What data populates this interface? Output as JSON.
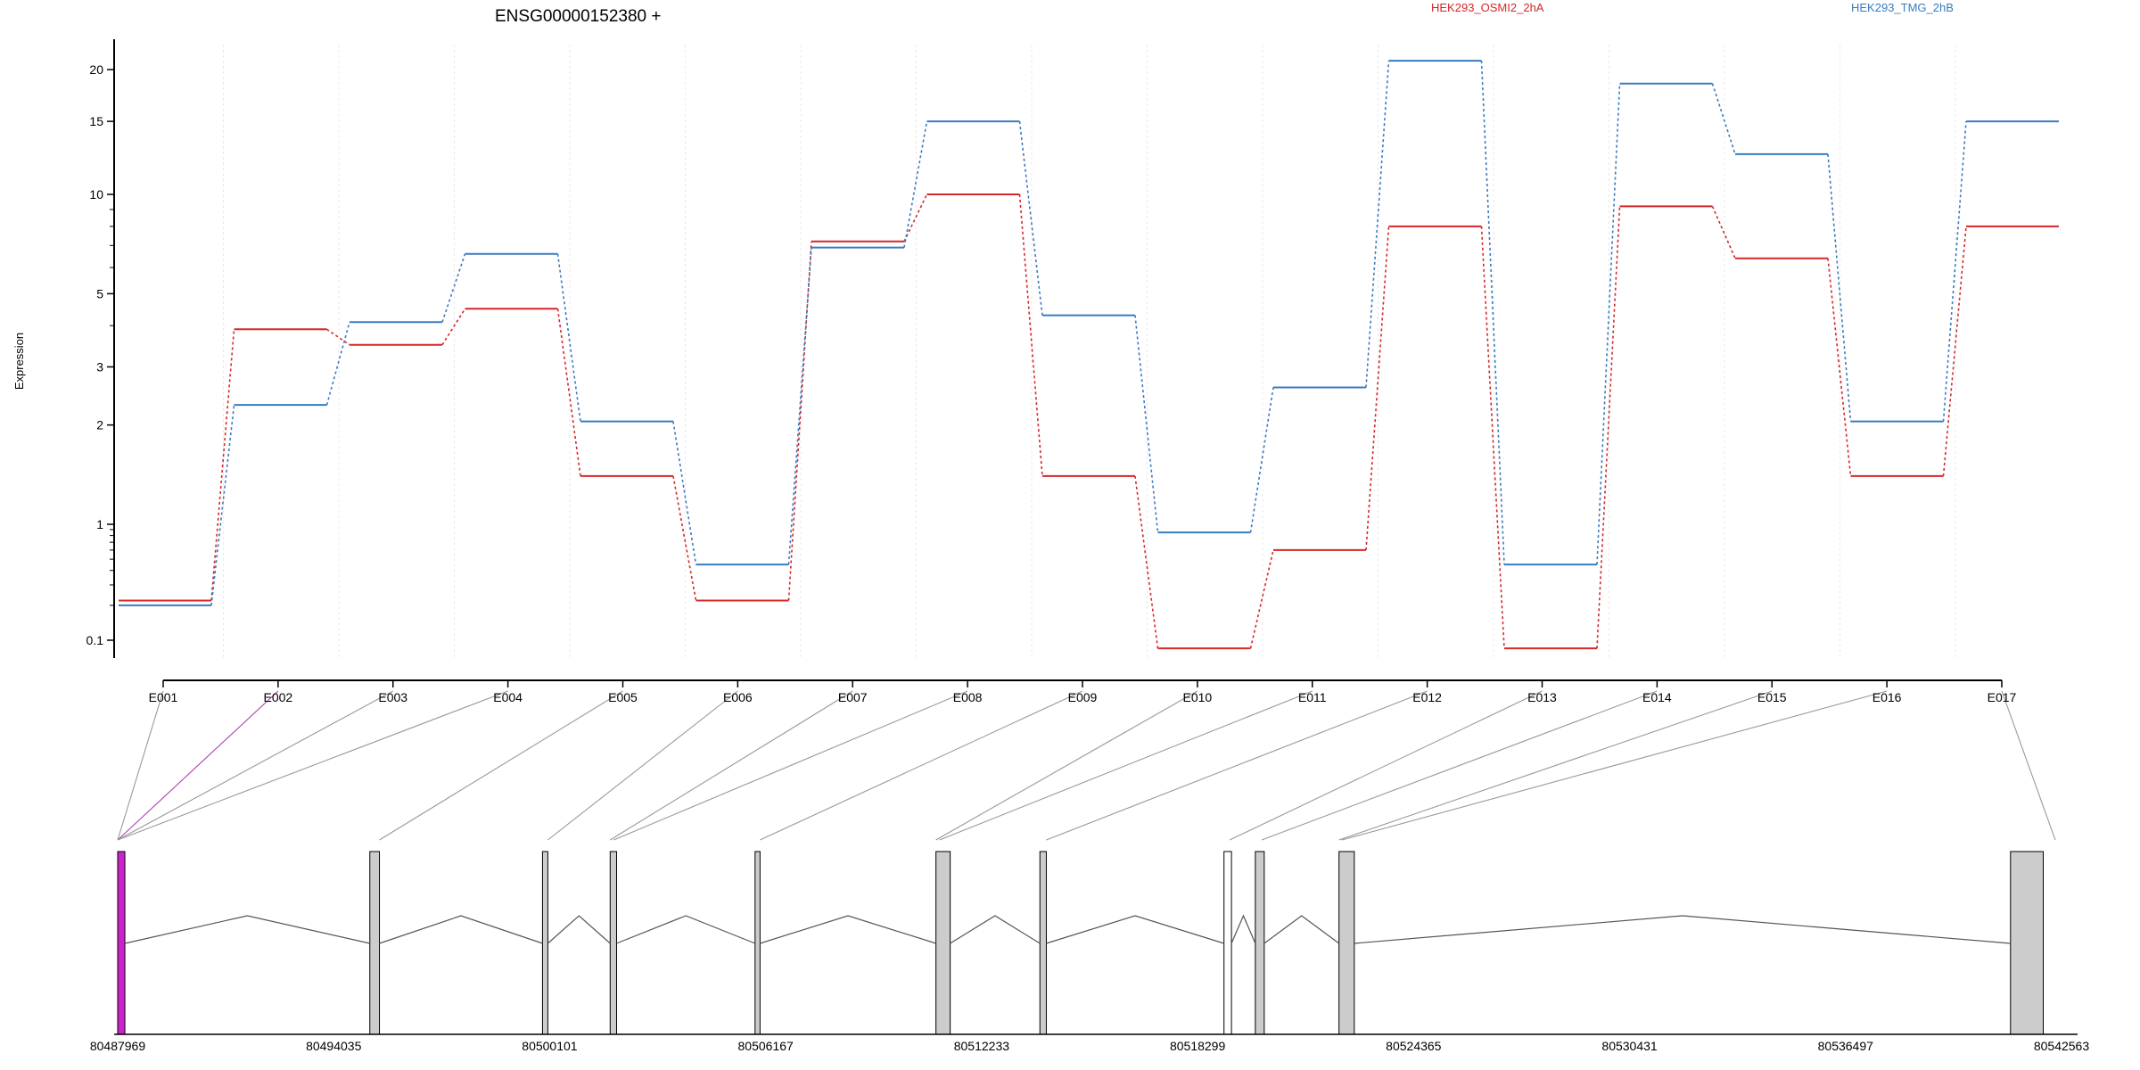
{
  "title": "ENSG00000152380 +",
  "chart_data": {
    "type": "line",
    "title": "ENSG00000152380 +",
    "ylabel": "Expression",
    "y_scale": "log",
    "ylim": [
      0.07,
      25
    ],
    "y_ticks": [
      0.1,
      1,
      2,
      3,
      5,
      10,
      15,
      20
    ],
    "y_tick_labels": [
      "0.1",
      "1",
      "2",
      "3",
      "5",
      "10",
      "15",
      "20"
    ],
    "categories": [
      "E001",
      "E002",
      "E003",
      "E004",
      "E005",
      "E006",
      "E007",
      "E008",
      "E009",
      "E010",
      "E011",
      "E012",
      "E013",
      "E014",
      "E015",
      "E016",
      "E017"
    ],
    "grid": true,
    "legend_placement": "top",
    "series": [
      {
        "name": "HEK293_OSMI2_2hA",
        "color": "#d62728",
        "values": [
          0.22,
          3.9,
          3.5,
          4.5,
          1.4,
          0.22,
          7.2,
          10.0,
          1.4,
          0.085,
          0.6,
          8.0,
          0.085,
          9.2,
          6.4,
          1.4,
          8.0
        ]
      },
      {
        "name": "HEK293_TMG_2hB",
        "color": "#3a7bbf",
        "values": [
          0.2,
          2.3,
          4.1,
          6.6,
          2.05,
          0.45,
          6.9,
          15.0,
          4.3,
          0.85,
          2.6,
          21.0,
          0.45,
          18.5,
          12.5,
          2.05,
          15.0
        ]
      }
    ]
  },
  "gene_model": {
    "fill_color": "#cccccc",
    "highlight_color": "#cc22cc",
    "coordinate_labels": [
      "80487969",
      "80494035",
      "80500101",
      "80506167",
      "80512233",
      "80518299",
      "80524365",
      "80530431",
      "80536497",
      "80542563"
    ],
    "region_start": 80487969,
    "region_end": 80542563,
    "exons": [
      {
        "start": 80487969,
        "end": 80488170,
        "fill": "#cc22cc"
      },
      {
        "start": 80495050,
        "end": 80495320,
        "fill": "#cccccc"
      },
      {
        "start": 80499900,
        "end": 80500050,
        "fill": "#cccccc"
      },
      {
        "start": 80501800,
        "end": 80501980,
        "fill": "#cccccc"
      },
      {
        "start": 80505870,
        "end": 80506010,
        "fill": "#cccccc"
      },
      {
        "start": 80510950,
        "end": 80511350,
        "fill": "#cccccc"
      },
      {
        "start": 80513870,
        "end": 80514050,
        "fill": "#cccccc"
      },
      {
        "start": 80519040,
        "end": 80519250,
        "fill": "#ffffff"
      },
      {
        "start": 80519920,
        "end": 80520170,
        "fill": "#cccccc"
      },
      {
        "start": 80522270,
        "end": 80522700,
        "fill": "#cccccc"
      },
      {
        "start": 80541130,
        "end": 80542050,
        "fill": "#cccccc"
      }
    ],
    "exon_bin_positions": [
      80487969,
      80487969,
      80487969,
      80487969,
      80495320,
      80500050,
      80501800,
      80501900,
      80506010,
      80510950,
      80511050,
      80514050,
      80519200,
      80520100,
      80522270,
      80522350,
      80541500
    ]
  }
}
